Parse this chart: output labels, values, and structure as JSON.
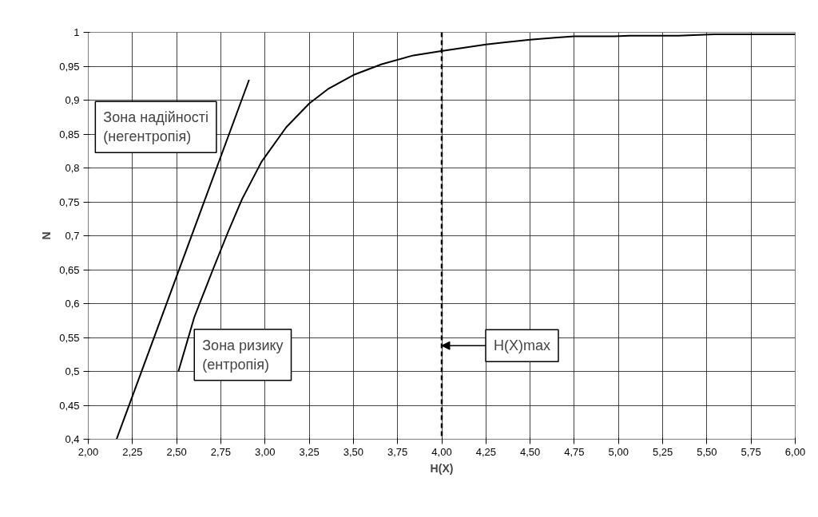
{
  "chart_data": {
    "type": "line",
    "xlabel": "H(X)",
    "ylabel": "N",
    "series": [
      {
        "color": "#000000",
        "x": [
          2.51,
          2.6,
          2.705,
          2.79,
          2.87,
          2.98,
          3.12,
          3.25,
          3.36,
          3.5,
          3.66,
          3.84,
          3.99,
          4.25,
          4.35,
          4.5,
          4.64,
          4.75,
          4.98,
          5.06,
          5.34,
          5.54,
          6.0
        ],
        "values": [
          0.5,
          0.58,
          0.65,
          0.705,
          0.754,
          0.809,
          0.86,
          0.895,
          0.917,
          0.937,
          0.953,
          0.966,
          0.972,
          0.982,
          0.985,
          0.989,
          0.992,
          0.994,
          0.994,
          0.995,
          0.995,
          0.997,
          0.997
        ]
      },
      {
        "color": "#000000",
        "x": [
          2.16,
          2.91
        ],
        "values": [
          0.4,
          0.93
        ]
      }
    ],
    "xlim": [
      2,
      6
    ],
    "ylim": [
      0.4,
      1
    ],
    "xticks": [
      {
        "value": 2,
        "label": "2,00"
      },
      {
        "value": 2.25,
        "label": "2,25"
      },
      {
        "value": 2.5,
        "label": "2,50"
      },
      {
        "value": 2.75,
        "label": "2,75"
      },
      {
        "value": 3,
        "label": "3,00"
      },
      {
        "value": 3.25,
        "label": "3,25"
      },
      {
        "value": 3.5,
        "label": "3,50"
      },
      {
        "value": 3.75,
        "label": "3,75"
      },
      {
        "value": 4,
        "label": "4,00"
      },
      {
        "value": 4.25,
        "label": "4,25"
      },
      {
        "value": 4.5,
        "label": "4,50"
      },
      {
        "value": 4.75,
        "label": "4,75"
      },
      {
        "value": 5,
        "label": "5,00"
      },
      {
        "value": 5.25,
        "label": "5,25"
      },
      {
        "value": 5.5,
        "label": "5,50"
      },
      {
        "value": 5.75,
        "label": "5,75"
      },
      {
        "value": 6,
        "label": "6,00"
      }
    ],
    "yticks": [
      {
        "value": 0.4,
        "label": "0,4"
      },
      {
        "value": 0.45,
        "label": "0,45"
      },
      {
        "value": 0.5,
        "label": "0,5"
      },
      {
        "value": 0.55,
        "label": "0,55"
      },
      {
        "value": 0.6,
        "label": "0,6"
      },
      {
        "value": 0.65,
        "label": "0,65"
      },
      {
        "value": 0.7,
        "label": "0,7"
      },
      {
        "value": 0.75,
        "label": "0,75"
      },
      {
        "value": 0.8,
        "label": "0,8"
      },
      {
        "value": 0.85,
        "label": "0,85"
      },
      {
        "value": 0.9,
        "label": "0,9"
      },
      {
        "value": 0.95,
        "label": "0,95"
      },
      1
    ],
    "grid": true,
    "marker": "none",
    "line_style": "solid",
    "ref_lines": [
      {
        "axis": "x",
        "value": 4,
        "color": "#000000",
        "line_style": "dashed",
        "label": "H(X)max"
      }
    ],
    "annotations": [
      "Зона надійності\n(негентропія)",
      "Зона ризику\n(ентропія)"
    ]
  }
}
